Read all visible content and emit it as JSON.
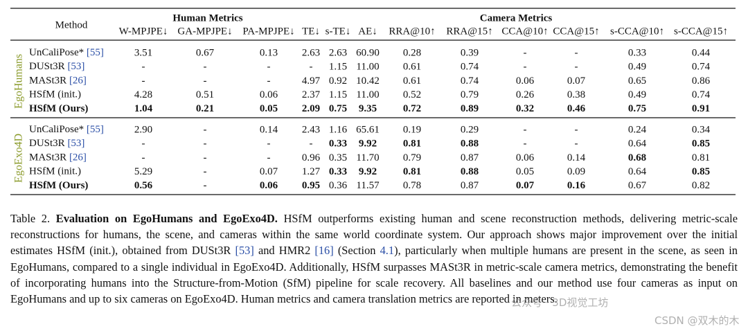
{
  "table": {
    "method_header": "Method",
    "group_headers": [
      "Human Metrics",
      "Camera Metrics"
    ],
    "columns": [
      "W-MPJPE↓",
      "GA-MPJPE↓",
      "PA-MPJPE↓",
      "TE↓",
      "s-TE↓",
      "AE↓",
      "RRA@10↑",
      "RRA@15↑",
      "CCA@10↑",
      "CCA@15↑",
      "s-CCA@10↑",
      "s-CCA@15↑"
    ],
    "groups": [
      {
        "label": "EgoHumans",
        "rows": [
          {
            "method": "UnCaliPose*",
            "cite": "[55]",
            "cells": [
              "3.51",
              "0.67",
              "0.13",
              "2.63",
              "2.63",
              "60.90",
              "0.28",
              "0.39",
              "-",
              "-",
              "0.33",
              "0.44"
            ]
          },
          {
            "method": "DUSt3R",
            "cite": "[53]",
            "cells": [
              "-",
              "-",
              "-",
              "-",
              "1.15",
              "11.00",
              "0.61",
              "0.74",
              "-",
              "-",
              "0.49",
              "0.74"
            ]
          },
          {
            "method": "MASt3R",
            "cite": "[26]",
            "cells": [
              "-",
              "-",
              "-",
              "4.97",
              "0.92",
              "10.42",
              "0.61",
              "0.74",
              "0.06",
              "0.07",
              "0.65",
              "0.86"
            ]
          },
          {
            "method": "HSfM (init.)",
            "cells": [
              "4.28",
              "0.51",
              "0.06",
              "2.37",
              "1.15",
              "11.00",
              "0.52",
              "0.79",
              "0.26",
              "0.38",
              "0.49",
              "0.74"
            ]
          },
          {
            "method": "HSfM (Ours)",
            "bold": true,
            "cells": [
              {
                "text": "1.04",
                "bold": true
              },
              {
                "text": "0.21",
                "bold": true
              },
              {
                "text": "0.05",
                "bold": true
              },
              {
                "text": "2.09",
                "bold": true
              },
              {
                "text": "0.75",
                "bold": true
              },
              {
                "text": "9.35",
                "bold": true
              },
              {
                "text": "0.72",
                "bold": true
              },
              {
                "text": "0.89",
                "bold": true
              },
              {
                "text": "0.32",
                "bold": true
              },
              {
                "text": "0.46",
                "bold": true
              },
              {
                "text": "0.75",
                "bold": true
              },
              {
                "text": "0.91",
                "bold": true
              }
            ]
          }
        ]
      },
      {
        "label": "EgoExo4D",
        "rows": [
          {
            "method": "UnCaliPose*",
            "cite": "[55]",
            "cells": [
              "2.90",
              "-",
              "0.14",
              "2.43",
              "1.16",
              "65.61",
              "0.19",
              "0.29",
              "-",
              "-",
              "0.24",
              "0.34"
            ]
          },
          {
            "method": "DUSt3R",
            "cite": "[53]",
            "cells": [
              "-",
              "-",
              "-",
              "-",
              {
                "text": "0.33",
                "bold": true
              },
              {
                "text": "9.92",
                "bold": true
              },
              {
                "text": "0.81",
                "bold": true
              },
              {
                "text": "0.88",
                "bold": true
              },
              "-",
              "-",
              "0.64",
              {
                "text": "0.85",
                "bold": true
              }
            ]
          },
          {
            "method": "MASt3R",
            "cite": "[26]",
            "cells": [
              "-",
              "-",
              "-",
              "0.96",
              "0.35",
              "11.70",
              "0.79",
              "0.87",
              "0.06",
              "0.14",
              {
                "text": "0.68",
                "bold": true
              },
              "0.81"
            ]
          },
          {
            "method": "HSfM (init.)",
            "cells": [
              "5.29",
              "-",
              "0.07",
              "1.27",
              {
                "text": "0.33",
                "bold": true
              },
              {
                "text": "9.92",
                "bold": true
              },
              {
                "text": "0.81",
                "bold": true
              },
              {
                "text": "0.88",
                "bold": true
              },
              "0.05",
              "0.09",
              "0.64",
              {
                "text": "0.85",
                "bold": true
              }
            ]
          },
          {
            "method": "HSfM (Ours)",
            "bold": true,
            "cells": [
              {
                "text": "0.56",
                "bold": true
              },
              "-",
              {
                "text": "0.06",
                "bold": true
              },
              {
                "text": "0.95",
                "bold": true
              },
              "0.36",
              "11.57",
              "0.78",
              "0.87",
              {
                "text": "0.07",
                "bold": true
              },
              {
                "text": "0.16",
                "bold": true
              },
              "0.67",
              "0.82"
            ]
          }
        ]
      }
    ]
  },
  "caption": {
    "label": "Table 2.",
    "title": "Evaluation on EgoHumans and EgoExo4D.",
    "body": [
      " HSfM outperforms existing human and scene reconstruction methods, delivering metric-scale reconstructions for humans, the scene, and cameras within the same world coordinate system. Our approach shows major improvement over the initial estimates HSfM (init.), obtained from DUSt3R ",
      "[53]",
      " and HMR2 ",
      "[16]",
      " (Section ",
      "4.1",
      "), particularly when multiple humans are present in the scene, as seen in EgoHumans, compared to a single individual in EgoExo4D. Additionally, HSfM surpasses MASt3R in metric-scale camera metrics, demonstrating the benefit of incorporating humans into the Structure-from-Motion (SfM) pipeline for scale recovery. All baselines and our method use four cameras as input on EgoHumans and up to six cameras on EgoExo4D. Human metrics and camera translation metrics are reported in meters."
    ]
  },
  "watermark": [
    "公众号 · 3D视觉工坊",
    "CSDN @双木的木"
  ]
}
